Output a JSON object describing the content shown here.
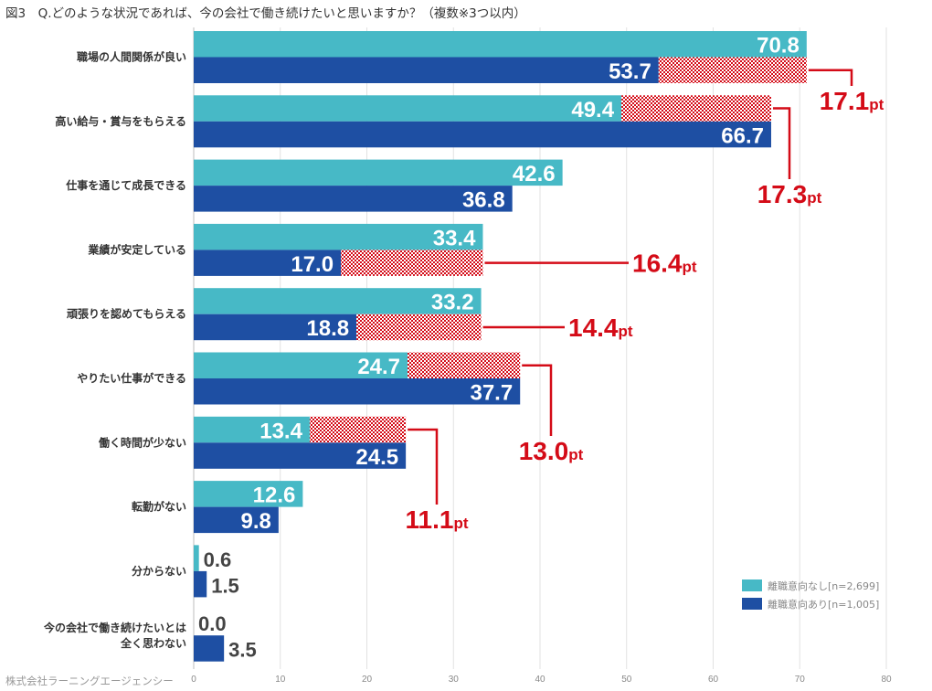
{
  "header": {
    "title": "図3　Q.どのような状況であれば、今の会社で働き続けたいと思いますか？（複数※3つ以内）"
  },
  "footer": {
    "credit": "株式会社ラーニングエージェンシー"
  },
  "colors": {
    "no_intent": "#47b9c6",
    "intent": "#1e4fa3",
    "diff": "#d40b17"
  },
  "chart_data": {
    "type": "bar",
    "orientation": "horizontal",
    "title": "図3　Q.どのような状況であれば、今の会社で働き続けたいと思いますか？（複数※3つ以内）",
    "xlabel": "",
    "ylabel": "",
    "xlim": [
      0,
      80
    ],
    "xticks": [
      0,
      10,
      20,
      30,
      40,
      50,
      60,
      70,
      80
    ],
    "grid": true,
    "legend_position": "bottom-right",
    "categories": [
      "職場の人間関係が良い",
      "高い給与・賞与をもらえる",
      "仕事を通じて成長できる",
      "業績が安定している",
      "頑張りを認めてもらえる",
      "やりたい仕事ができる",
      "働く時間が少ない",
      "転勤がない",
      "分からない",
      "今の会社で働き続けたいとは\n全く思わない"
    ],
    "series": [
      {
        "name": "離職意向なし[n=2,699]",
        "values": [
          70.8,
          49.4,
          42.6,
          33.4,
          33.2,
          24.7,
          13.4,
          12.6,
          0.6,
          0.0
        ]
      },
      {
        "name": "離職意向あり[n=1,005]",
        "values": [
          53.7,
          66.7,
          36.8,
          17.0,
          18.8,
          37.7,
          24.5,
          9.8,
          1.5,
          3.5
        ]
      }
    ],
    "annotations": [
      {
        "category_index": 0,
        "label": "17.1",
        "unit": "pt"
      },
      {
        "category_index": 1,
        "label": "17.3",
        "unit": "pt"
      },
      {
        "category_index": 3,
        "label": "16.4",
        "unit": "pt"
      },
      {
        "category_index": 4,
        "label": "14.4",
        "unit": "pt"
      },
      {
        "category_index": 5,
        "label": "13.0",
        "unit": "pt"
      },
      {
        "category_index": 6,
        "label": "11.1",
        "unit": "pt"
      }
    ]
  }
}
